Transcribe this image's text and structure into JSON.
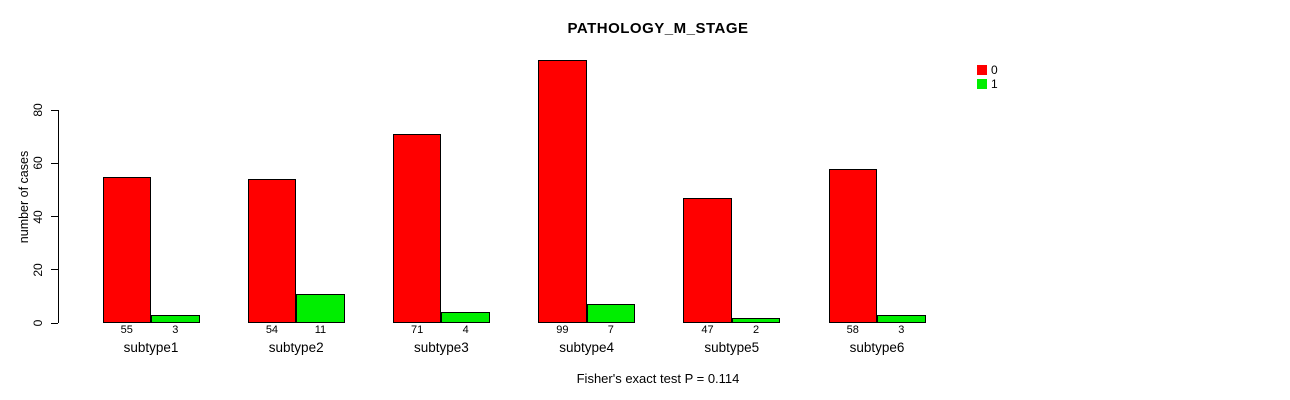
{
  "chart_data": {
    "type": "bar",
    "title": "PATHOLOGY_M_STAGE",
    "ylabel": "number of cases",
    "xlabel": "",
    "categories": [
      "subtype1",
      "subtype2",
      "subtype3",
      "subtype4",
      "subtype5",
      "subtype6"
    ],
    "series": [
      {
        "name": "0",
        "color": "#ff0000",
        "values": [
          55,
          54,
          71,
          99,
          47,
          58
        ]
      },
      {
        "name": "1",
        "color": "#00ee00",
        "values": [
          3,
          11,
          4,
          7,
          2,
          3
        ]
      }
    ],
    "yticks": [
      0,
      20,
      40,
      60,
      80
    ],
    "ylim": [
      0,
      80
    ],
    "grid": false,
    "bar_value_labels": true,
    "legend_position": "top-right",
    "annotation": "Fisher's exact test P = 0.114",
    "colors": {
      "bar_border": "#000000",
      "axis": "#000000",
      "background": "#ffffff"
    }
  }
}
